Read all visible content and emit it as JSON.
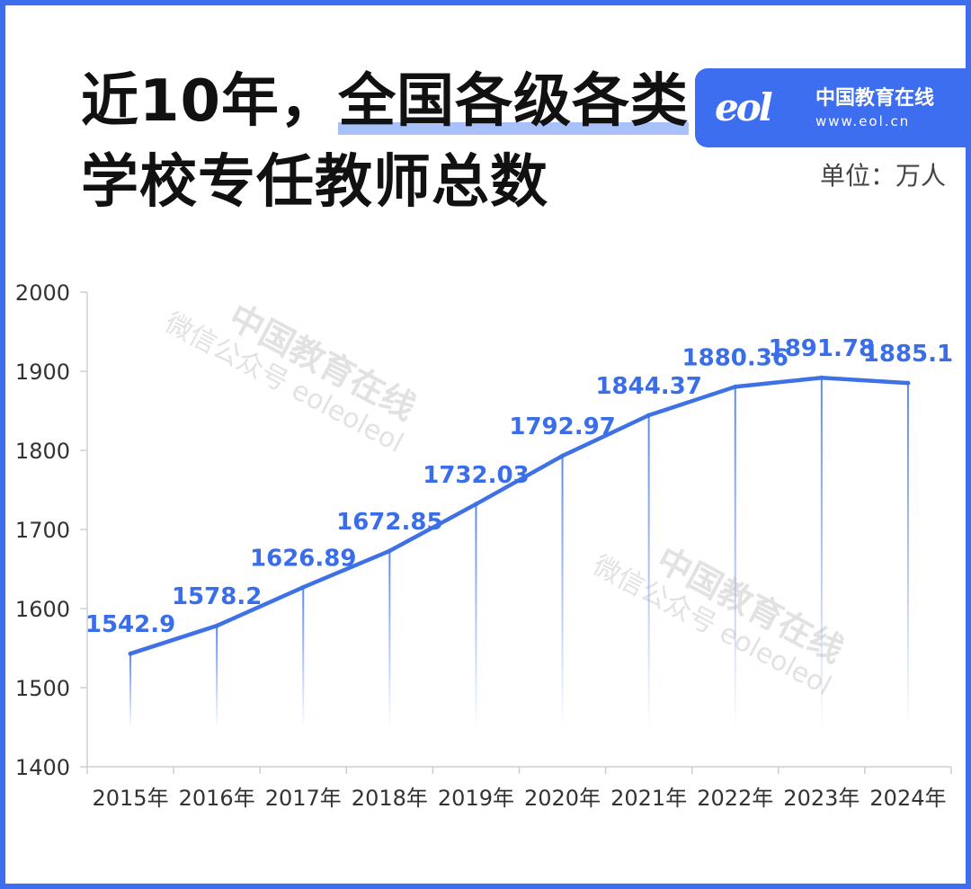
{
  "header": {
    "title_line1_a": "近10年，",
    "title_line1_b": "全国各级各类",
    "title_line2": "学校专任教师总数",
    "unit_label": "单位：万人"
  },
  "brand": {
    "logo_mark": "eol",
    "name": "中国教育在线",
    "url": "www.eol.cn"
  },
  "watermark": {
    "line1": "中国教育在线",
    "line2": "微信公众号 eoleoleol"
  },
  "colors": {
    "accent": "#3d6ef0",
    "line": "#3f71e6",
    "label": "#3a6de8",
    "axis_text": "#333333"
  },
  "chart_data": {
    "type": "line",
    "title": "",
    "xlabel": "",
    "ylabel": "",
    "unit": "单位：万人",
    "categories": [
      "2015年",
      "2016年",
      "2017年",
      "2018年",
      "2019年",
      "2020年",
      "2021年",
      "2022年",
      "2023年",
      "2024年"
    ],
    "series": [
      {
        "values": [
          1542.9,
          1578.2,
          1626.89,
          1672.85,
          1732.03,
          1792.97,
          1844.37,
          1880.36,
          1891.78,
          1885.1
        ]
      }
    ],
    "data_labels": [
      "1542.9",
      "1578.2",
      "1626.89",
      "1672.85",
      "1732.03",
      "1792.97",
      "1844.37",
      "1880.36",
      "1891.78",
      "1885.1"
    ],
    "ylim": [
      1400,
      2000
    ],
    "yticks": [
      1400,
      1500,
      1600,
      1700,
      1800,
      1900,
      2000
    ],
    "grid": false,
    "legend": "none"
  }
}
